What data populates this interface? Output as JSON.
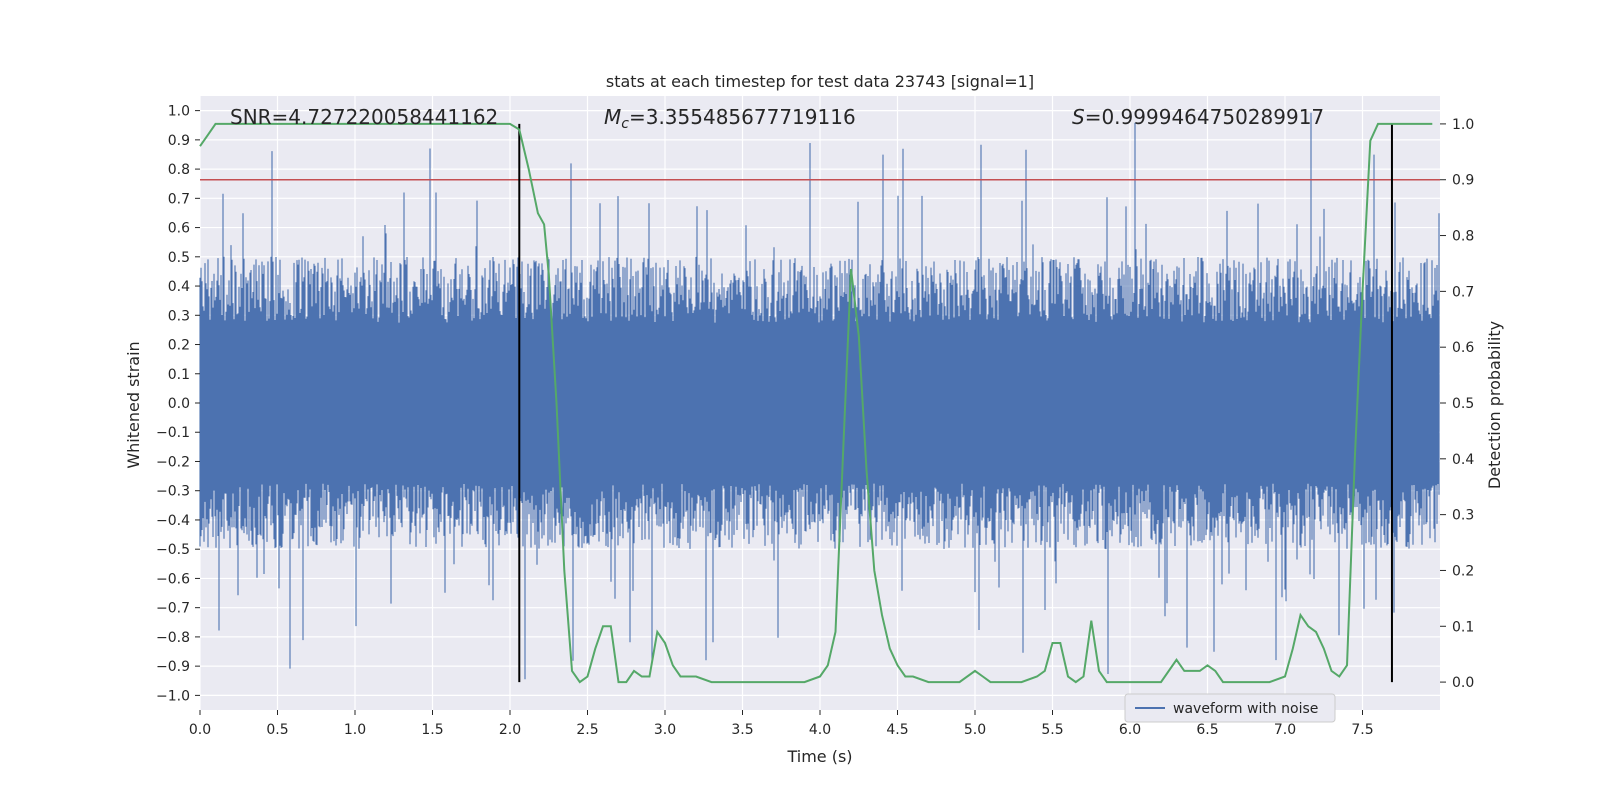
{
  "chart_data": {
    "type": "line",
    "title": "stats at each timestep for test data 23743 [signal=1]",
    "xlabel": "Time (s)",
    "ylabel_left": "Whitened strain",
    "ylabel_right": "Detection probability",
    "xlim": [
      0.0,
      8.0
    ],
    "ylim_left": [
      -1.05,
      1.05
    ],
    "ylim_right": [
      -0.05,
      1.05
    ],
    "x_ticks": [
      0.0,
      0.5,
      1.0,
      1.5,
      2.0,
      2.5,
      3.0,
      3.5,
      4.0,
      4.5,
      5.0,
      5.5,
      6.0,
      6.5,
      7.0,
      7.5
    ],
    "x_tick_labels": [
      "0.0",
      "0.5",
      "1.0",
      "1.5",
      "2.0",
      "2.5",
      "3.0",
      "3.5",
      "4.0",
      "4.5",
      "5.0",
      "5.5",
      "6.0",
      "6.5",
      "7.0",
      "7.5"
    ],
    "left_ticks": [
      1.0,
      0.9,
      0.8,
      0.7,
      0.6,
      0.5,
      0.4,
      0.3,
      0.2,
      0.1,
      0.0,
      -0.1,
      -0.2,
      -0.3,
      -0.4,
      -0.5,
      -0.6,
      -0.7,
      -0.8,
      -0.9,
      -1.0
    ],
    "left_tick_labels": [
      "1.0",
      "0.9",
      "0.8",
      "0.7",
      "0.6",
      "0.5",
      "0.4",
      "0.3",
      "0.2",
      "0.1",
      "0.0",
      "−0.1",
      "−0.2",
      "−0.3",
      "−0.4",
      "−0.5",
      "−0.6",
      "−0.7",
      "−0.8",
      "−0.9",
      "−1.0"
    ],
    "right_ticks": [
      1.0,
      0.9,
      0.8,
      0.7,
      0.6,
      0.5,
      0.4,
      0.3,
      0.2,
      0.1,
      0.0
    ],
    "right_tick_labels": [
      "1.0",
      "0.9",
      "0.8",
      "0.7",
      "0.6",
      "0.5",
      "0.4",
      "0.3",
      "0.2",
      "0.1",
      "0.0"
    ],
    "annotations": {
      "snr": "SNR=4.727220058441162",
      "mc_symbol": "M",
      "mc_subscript": "c",
      "mc_value": "=3.355485677719116",
      "s_symbol": "S",
      "s_value": "=0.9999464750289917"
    },
    "threshold_line": {
      "value_right_axis": 0.9,
      "color": "#c44e52"
    },
    "vertical_markers": [
      2.06,
      7.69
    ],
    "waveform": {
      "name": "waveform with noise",
      "color": "#4c72b0",
      "style": "dense noise envelope, core approx ±0.5, spikes to ±1.0",
      "upper_envelope_core": 0.5,
      "lower_envelope_core": -0.5
    },
    "probability_series": {
      "color": "#55a868",
      "x": [
        0.0,
        0.05,
        0.1,
        0.2,
        0.5,
        1.0,
        1.5,
        1.9,
        2.0,
        2.06,
        2.12,
        2.18,
        2.22,
        2.25,
        2.3,
        2.35,
        2.4,
        2.45,
        2.5,
        2.55,
        2.6,
        2.65,
        2.7,
        2.75,
        2.8,
        2.85,
        2.9,
        2.95,
        3.0,
        3.05,
        3.1,
        3.15,
        3.2,
        3.3,
        3.4,
        3.5,
        3.6,
        3.7,
        3.8,
        3.9,
        4.0,
        4.05,
        4.1,
        4.15,
        4.2,
        4.25,
        4.3,
        4.35,
        4.4,
        4.45,
        4.5,
        4.55,
        4.6,
        4.7,
        4.8,
        4.9,
        5.0,
        5.05,
        5.1,
        5.15,
        5.2,
        5.3,
        5.4,
        5.45,
        5.5,
        5.55,
        5.6,
        5.65,
        5.7,
        5.75,
        5.8,
        5.85,
        5.9,
        6.0,
        6.1,
        6.2,
        6.3,
        6.35,
        6.4,
        6.45,
        6.5,
        6.55,
        6.6,
        6.65,
        6.7,
        6.75,
        6.8,
        6.9,
        7.0,
        7.05,
        7.1,
        7.15,
        7.2,
        7.25,
        7.3,
        7.35,
        7.4,
        7.45,
        7.5,
        7.55,
        7.6,
        7.65,
        7.7,
        7.75,
        7.8,
        7.85,
        7.9,
        7.95
      ],
      "y": [
        0.96,
        0.98,
        1.0,
        1.0,
        1.0,
        1.0,
        1.0,
        1.0,
        1.0,
        0.99,
        0.92,
        0.84,
        0.82,
        0.73,
        0.5,
        0.2,
        0.02,
        0.0,
        0.01,
        0.06,
        0.1,
        0.1,
        0.0,
        0.0,
        0.02,
        0.01,
        0.01,
        0.09,
        0.07,
        0.03,
        0.01,
        0.01,
        0.01,
        0.0,
        0.0,
        0.0,
        0.0,
        0.0,
        0.0,
        0.0,
        0.01,
        0.03,
        0.09,
        0.42,
        0.74,
        0.62,
        0.38,
        0.2,
        0.12,
        0.06,
        0.03,
        0.01,
        0.01,
        0.0,
        0.0,
        0.0,
        0.02,
        0.01,
        0.0,
        0.0,
        0.0,
        0.0,
        0.01,
        0.02,
        0.07,
        0.07,
        0.01,
        0.0,
        0.01,
        0.11,
        0.02,
        0.0,
        0.0,
        0.0,
        0.0,
        0.0,
        0.04,
        0.02,
        0.02,
        0.02,
        0.03,
        0.02,
        0.0,
        0.0,
        0.0,
        0.0,
        0.0,
        0.0,
        0.01,
        0.06,
        0.12,
        0.1,
        0.09,
        0.06,
        0.02,
        0.01,
        0.03,
        0.4,
        0.7,
        0.97,
        1.0,
        1.0,
        1.0,
        1.0,
        1.0,
        1.0,
        1.0,
        1.0
      ]
    },
    "legend": {
      "label": "waveform with noise",
      "placement": "lower-right"
    }
  }
}
